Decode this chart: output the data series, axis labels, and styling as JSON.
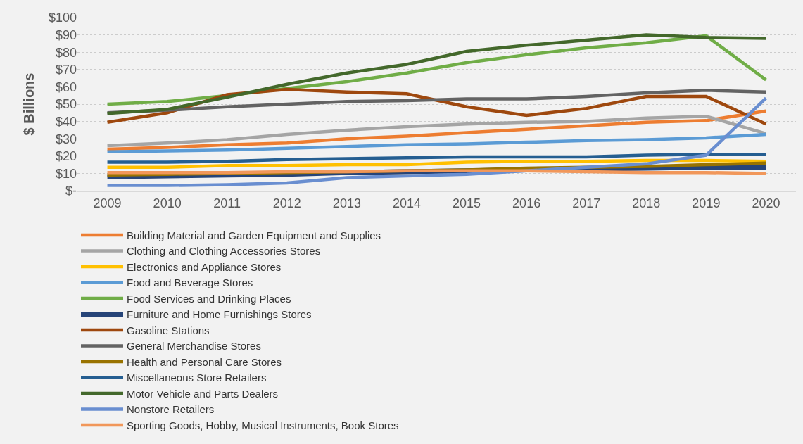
{
  "chart_data": {
    "type": "line",
    "ylabel": "$ Billions",
    "categories": [
      "2009",
      "2010",
      "2011",
      "2012",
      "2013",
      "2014",
      "2015",
      "2016",
      "2017",
      "2018",
      "2019",
      "2020"
    ],
    "ylim": [
      0,
      100
    ],
    "yticks": [
      {
        "value": 0,
        "label": "$-"
      },
      {
        "value": 10,
        "label": "$10"
      },
      {
        "value": 20,
        "label": "$20"
      },
      {
        "value": 30,
        "label": "$30"
      },
      {
        "value": 40,
        "label": "$40"
      },
      {
        "value": 50,
        "label": "$50"
      },
      {
        "value": 60,
        "label": "$60"
      },
      {
        "value": 70,
        "label": "$70"
      },
      {
        "value": 80,
        "label": "$80"
      },
      {
        "value": 90,
        "label": "$90"
      },
      {
        "value": 100,
        "label": "$100"
      }
    ],
    "grid": "y",
    "legend": "bottom",
    "marker": "none",
    "line_style": "solid",
    "series": [
      {
        "name": "Building Material and Garden Equipment and Supplies",
        "color": "#ed7d31",
        "values": [
          24,
          25,
          26.5,
          27.5,
          30,
          31.5,
          33.5,
          35.5,
          37.5,
          39.5,
          40.5,
          46
        ]
      },
      {
        "name": "Clothing and Clothing Accessories Stores",
        "color": "#a5a5a5",
        "values": [
          26,
          27.5,
          29.5,
          32.5,
          35,
          37,
          38.5,
          39.5,
          40,
          42,
          43,
          33
        ]
      },
      {
        "name": "Electronics and Appliance Stores",
        "color": "#ffc000",
        "values": [
          13.5,
          13.5,
          14.5,
          14.5,
          15,
          15,
          16.5,
          17,
          17,
          17.5,
          17.5,
          17
        ]
      },
      {
        "name": "Food and Beverage Stores",
        "color": "#5b9bd5",
        "values": [
          22.5,
          23,
          23.5,
          24.5,
          25.5,
          26.5,
          27,
          28,
          29,
          29.5,
          30.5,
          32.5
        ]
      },
      {
        "name": "Food Services and Drinking Places",
        "color": "#70ad47",
        "values": [
          50,
          51.5,
          55,
          59,
          63,
          68,
          74,
          78.5,
          82.5,
          85.5,
          89.5,
          64
        ]
      },
      {
        "name": "Furniture and Home Furnishings Stores",
        "color": "#264478",
        "values": [
          8,
          8.5,
          9,
          9.5,
          10.5,
          11,
          11.5,
          12,
          12.5,
          13,
          13.5,
          13.5
        ]
      },
      {
        "name": "Gasoline Stations",
        "color": "#9e480e",
        "values": [
          39.5,
          45,
          55.5,
          58.5,
          57,
          56,
          48.5,
          43.5,
          47.5,
          54.5,
          54.5,
          38.5
        ]
      },
      {
        "name": "General Merchandise Stores",
        "color": "#636363",
        "values": [
          45,
          46.5,
          48.5,
          50,
          51.5,
          52,
          53,
          53,
          54.5,
          56.5,
          58,
          57
        ]
      },
      {
        "name": "Health and Personal Care Stores",
        "color": "#997300",
        "values": [
          9,
          9.5,
          10,
          10.5,
          11,
          11.5,
          12,
          13,
          13.5,
          14,
          15,
          16
        ]
      },
      {
        "name": "Miscellaneous Store Retailers",
        "color": "#255e91",
        "values": [
          16.5,
          16.5,
          17,
          18,
          18.5,
          19,
          19.5,
          19.5,
          19.5,
          20.5,
          21,
          21
        ]
      },
      {
        "name": "Motor Vehicle and Parts Dealers",
        "color": "#43682b",
        "values": [
          44.6,
          47,
          54,
          61.5,
          68,
          73,
          80.5,
          84,
          87,
          90,
          88.5,
          88
        ]
      },
      {
        "name": "Nonstore Retailers",
        "color": "#698ed0",
        "values": [
          3,
          3,
          3.5,
          4.5,
          7.5,
          8.5,
          9.5,
          11.5,
          13.5,
          15.5,
          20.5,
          53.5
        ]
      },
      {
        "name": "Sporting Goods, Hobby, Musical Instruments, Book Stores",
        "color": "#f1975a",
        "values": [
          10.5,
          10.5,
          10.5,
          11,
          11,
          11.5,
          11.5,
          11.5,
          11,
          10.5,
          10.5,
          10
        ]
      }
    ]
  }
}
